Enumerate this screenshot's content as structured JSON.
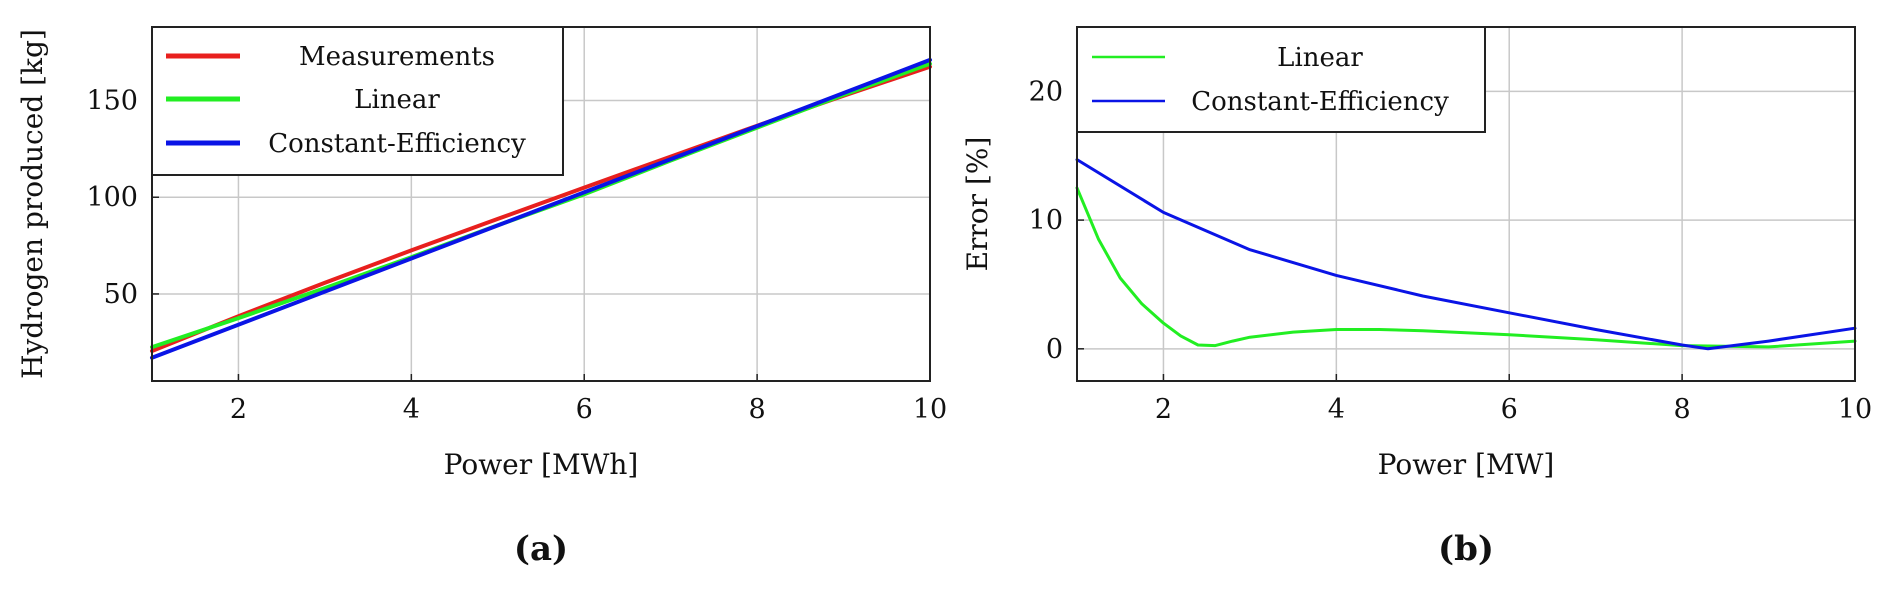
{
  "chart_data": [
    {
      "type": "line",
      "caption": "(a)",
      "xlabel": "Power [MWh]",
      "ylabel": "Hydrogen produced [kg]",
      "xlim": [
        1,
        10
      ],
      "ylim": [
        5,
        188
      ],
      "xticks": [
        "2",
        "4",
        "6",
        "8",
        "10"
      ],
      "yticks": [
        "50",
        "100",
        "150"
      ],
      "grid": true,
      "legend_position": "top-left",
      "series": [
        {
          "name": "Measurements",
          "color": "#e8201e",
          "x": [
            1,
            2,
            3,
            4,
            5,
            6,
            7,
            8,
            9,
            10
          ],
          "y": [
            20.5,
            38.5,
            55.8,
            72.5,
            88.8,
            105,
            121,
            137,
            152.5,
            167.5
          ]
        },
        {
          "name": "Linear",
          "color": "#22ee22",
          "x": [
            1,
            2,
            3,
            4,
            5,
            6,
            7,
            8,
            9,
            10
          ],
          "y": [
            22.5,
            37.5,
            53,
            69,
            85.5,
            101.5,
            119,
            136,
            153,
            169
          ]
        },
        {
          "name": "Constant-Efficiency",
          "color": "#0a14e6",
          "x": [
            1,
            10
          ],
          "y": [
            17,
            171
          ]
        }
      ]
    },
    {
      "type": "line",
      "caption": "(b)",
      "xlabel": "Power [MW]",
      "ylabel": "Error [%]",
      "xlim": [
        1,
        10
      ],
      "ylim": [
        -2.5,
        25
      ],
      "xticks": [
        "2",
        "4",
        "6",
        "8",
        "10"
      ],
      "yticks": [
        "0",
        "10",
        "20"
      ],
      "grid": true,
      "legend_position": "top-left",
      "series": [
        {
          "name": "Linear",
          "color": "#22ee22",
          "x": [
            1,
            1.25,
            1.5,
            1.75,
            2,
            2.2,
            2.4,
            2.6,
            2.8,
            3,
            3.5,
            4,
            4.5,
            5,
            6,
            7,
            8,
            9,
            10
          ],
          "y": [
            12.5,
            8.5,
            5.5,
            3.5,
            2.0,
            1.0,
            0.3,
            0.25,
            0.6,
            0.9,
            1.3,
            1.5,
            1.5,
            1.4,
            1.1,
            0.7,
            0.25,
            0.15,
            0.6
          ]
        },
        {
          "name": "Constant-Efficiency",
          "color": "#0a14e6",
          "x": [
            1,
            2,
            3,
            4,
            5,
            6,
            7,
            8,
            8.3,
            9,
            10
          ],
          "y": [
            14.7,
            10.6,
            7.7,
            5.7,
            4.1,
            2.8,
            1.5,
            0.3,
            0.0,
            0.6,
            1.6
          ]
        }
      ]
    }
  ]
}
